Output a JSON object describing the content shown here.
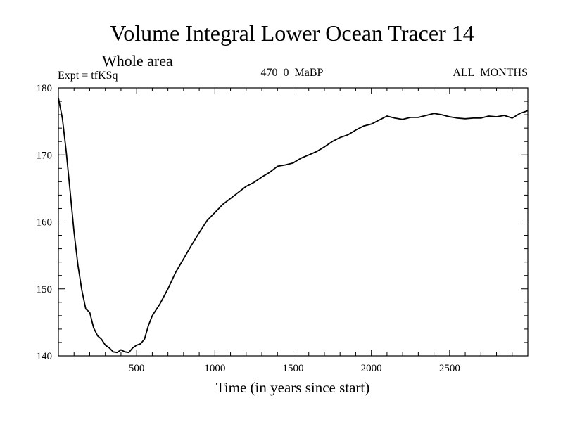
{
  "chart_data": {
    "type": "line",
    "title": "Volume Integral Lower Ocean Tracer 14",
    "subtitle": "Whole area",
    "left_label": "Expt = tfKSq",
    "center_label": "470_0_MaBP",
    "right_label": "ALL_MONTHS",
    "xlabel": "Time (in years since start)",
    "ylabel": "",
    "xlim": [
      0,
      3000
    ],
    "ylim": [
      140,
      180
    ],
    "xticks": [
      500,
      1000,
      1500,
      2000,
      2500
    ],
    "xtick_labels": [
      "500",
      "1000",
      "1500",
      "2000",
      "2500"
    ],
    "yticks": [
      140,
      150,
      160,
      170,
      180
    ],
    "ytick_labels": [
      "140",
      "150",
      "160",
      "170",
      "180"
    ],
    "grid": false,
    "legend": "none",
    "line_color": "#000000",
    "series": [
      {
        "name": "Lower Ocean Tracer 14",
        "x": [
          0,
          25,
          50,
          75,
          100,
          125,
          150,
          175,
          200,
          225,
          250,
          275,
          300,
          325,
          350,
          375,
          400,
          425,
          450,
          475,
          500,
          525,
          550,
          575,
          600,
          650,
          700,
          750,
          800,
          850,
          900,
          950,
          1000,
          1050,
          1100,
          1150,
          1200,
          1250,
          1300,
          1350,
          1400,
          1450,
          1500,
          1550,
          1600,
          1650,
          1700,
          1750,
          1800,
          1850,
          1900,
          1950,
          2000,
          2050,
          2100,
          2150,
          2200,
          2250,
          2300,
          2350,
          2400,
          2450,
          2500,
          2550,
          2600,
          2650,
          2700,
          2750,
          2800,
          2850,
          2900,
          2950,
          3000
        ],
        "y": [
          178.5,
          175.5,
          170.5,
          164.5,
          158.5,
          153.5,
          149.8,
          147.0,
          146.5,
          144.2,
          143.0,
          142.5,
          141.6,
          141.2,
          140.6,
          140.5,
          140.9,
          140.6,
          140.5,
          141.2,
          141.6,
          141.8,
          142.5,
          144.5,
          146.0,
          147.8,
          150.0,
          152.5,
          154.5,
          156.5,
          158.4,
          160.2,
          161.4,
          162.6,
          163.5,
          164.4,
          165.3,
          165.9,
          166.7,
          167.4,
          168.3,
          168.5,
          168.8,
          169.5,
          170.0,
          170.5,
          171.2,
          172.0,
          172.6,
          173.0,
          173.7,
          174.3,
          174.6,
          175.2,
          175.8,
          175.5,
          175.3,
          175.6,
          175.6,
          175.9,
          176.2,
          176.0,
          175.7,
          175.5,
          175.4,
          175.5,
          175.5,
          175.8,
          175.7,
          175.9,
          175.5,
          176.2,
          176.6
        ]
      }
    ]
  }
}
